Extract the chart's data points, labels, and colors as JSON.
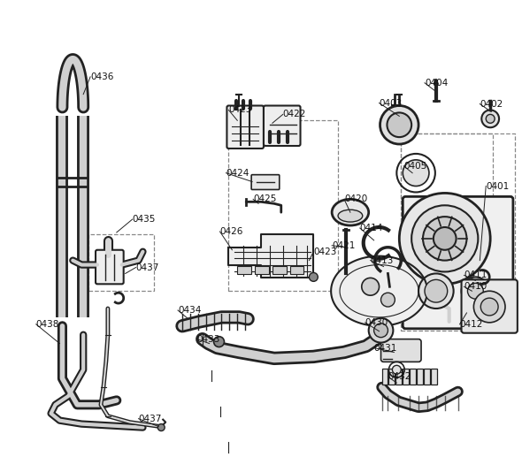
{
  "bg_color": "#ffffff",
  "line_color": "#222222",
  "label_color": "#111111",
  "dashed_color": "#888888",
  "fig_width": 5.9,
  "fig_height": 5.17,
  "dpi": 100
}
